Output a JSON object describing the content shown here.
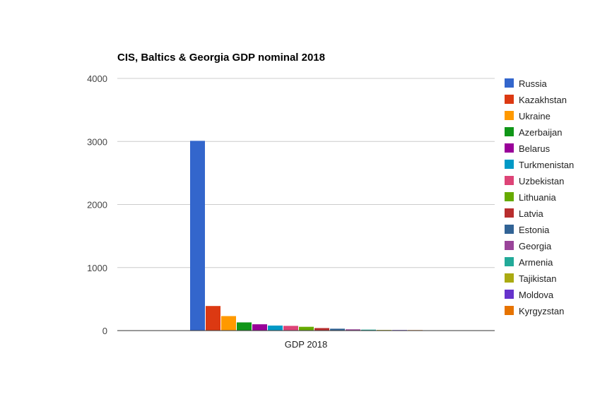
{
  "chart_data": {
    "type": "bar",
    "title": "CIS, Baltics & Georgia GDP nominal 2018",
    "categories": [
      "GDP 2018"
    ],
    "ylim": [
      0,
      4000
    ],
    "yticks": [
      "0",
      "1000",
      "2000",
      "3000",
      "4000"
    ],
    "grid": true,
    "legend_position": "right",
    "series": [
      {
        "name": "Russia",
        "color": "#3366cc",
        "values": [
          3010
        ]
      },
      {
        "name": "Kazakhstan",
        "color": "#dc3912",
        "values": [
          390
        ]
      },
      {
        "name": "Ukraine",
        "color": "#ff9900",
        "values": [
          230
        ]
      },
      {
        "name": "Azerbaijan",
        "color": "#109618",
        "values": [
          130
        ]
      },
      {
        "name": "Belarus",
        "color": "#990099",
        "values": [
          100
        ]
      },
      {
        "name": "Turkmenistan",
        "color": "#0099c6",
        "values": [
          80
        ]
      },
      {
        "name": "Uzbekistan",
        "color": "#dd4477",
        "values": [
          75
        ]
      },
      {
        "name": "Lithuania",
        "color": "#66aa00",
        "values": [
          60
        ]
      },
      {
        "name": "Latvia",
        "color": "#b82e2e",
        "values": [
          40
        ]
      },
      {
        "name": "Estonia",
        "color": "#316395",
        "values": [
          30
        ]
      },
      {
        "name": "Georgia",
        "color": "#994499",
        "values": [
          20
        ]
      },
      {
        "name": "Armenia",
        "color": "#22aa99",
        "values": [
          15
        ]
      },
      {
        "name": "Tajikistan",
        "color": "#aaaa11",
        "values": [
          10
        ]
      },
      {
        "name": "Moldova",
        "color": "#6633cc",
        "values": [
          9
        ]
      },
      {
        "name": "Kyrgyzstan",
        "color": "#e67300",
        "values": [
          8
        ]
      }
    ]
  }
}
